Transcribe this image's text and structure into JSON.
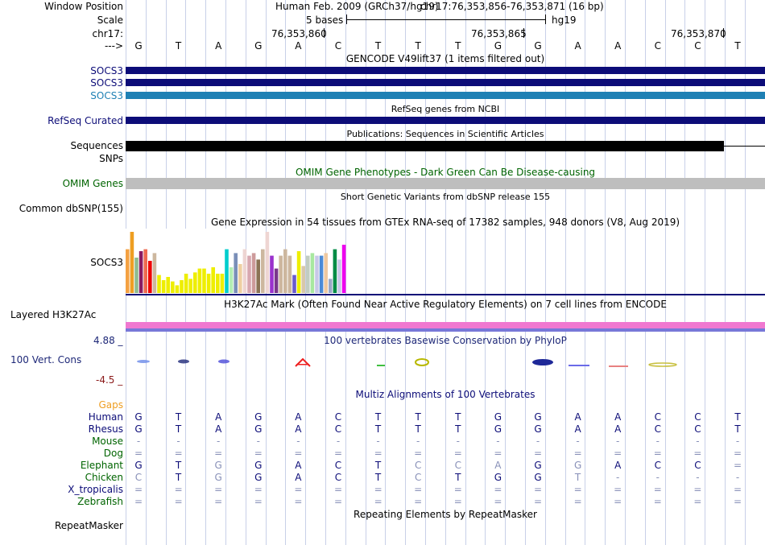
{
  "header": {
    "window_position_label": "Window Position",
    "scale_label": "Scale",
    "chrom_label": "chr17:",
    "arrow_label": "--->",
    "assembly": "Human Feb. 2009 (GRCh37/hg19)",
    "position": "chr17:76,353,856-76,353,871 (16 bp)",
    "scale_text": "5 bases",
    "scale_db": "hg19",
    "coord1": "76,353,860",
    "coord2": "76,353,865",
    "coord3": "76,353,870"
  },
  "sequence": [
    "G",
    "T",
    "A",
    "G",
    "A",
    "C",
    "T",
    "T",
    "T",
    "G",
    "G",
    "A",
    "A",
    "C",
    "C",
    "T"
  ],
  "gencode": {
    "title": "GENCODE V49lift37 (1 items filtered out)",
    "tracks": [
      "SOCS3",
      "SOCS3",
      "SOCS3"
    ],
    "colors": [
      "#0c0c78",
      "#0c0c78",
      "#1e80b4"
    ]
  },
  "refseq": {
    "title": "RefSeq genes from NCBI",
    "label": "RefSeq Curated"
  },
  "publications": {
    "title": "Publications: Sequences in Scientific Articles",
    "label1": "Sequences",
    "label2": "SNPs"
  },
  "omim": {
    "title": "OMIM Gene Phenotypes - Dark Green Can Be Disease-causing",
    "label": "OMIM Genes"
  },
  "dbsnp": {
    "title": "Short Genetic Variants from dbSNP release 155",
    "label": "Common dbSNP(155)"
  },
  "gtex": {
    "title": "Gene Expression in 54 tissues from GTEx RNA-seq of 17382 samples, 948 donors (V8, Aug 2019)",
    "label": "SOCS3",
    "bars": [
      {
        "v": 0.68,
        "c": "#f4a142"
      },
      {
        "v": 0.95,
        "c": "#ee9e22"
      },
      {
        "v": 0.55,
        "c": "#8fbc8f"
      },
      {
        "v": 0.65,
        "c": "#8b1c62"
      },
      {
        "v": 0.68,
        "c": "#ee6a50"
      },
      {
        "v": 0.5,
        "c": "#ee0000"
      },
      {
        "v": 0.62,
        "c": "#cdb79e"
      },
      {
        "v": 0.28,
        "c": "#eeee00"
      },
      {
        "v": 0.2,
        "c": "#eeee00"
      },
      {
        "v": 0.25,
        "c": "#eeee00"
      },
      {
        "v": 0.18,
        "c": "#eeee00"
      },
      {
        "v": 0.12,
        "c": "#eeee00"
      },
      {
        "v": 0.2,
        "c": "#eeee00"
      },
      {
        "v": 0.3,
        "c": "#eeee00"
      },
      {
        "v": 0.22,
        "c": "#eeee00"
      },
      {
        "v": 0.32,
        "c": "#eeee00"
      },
      {
        "v": 0.38,
        "c": "#eeee00"
      },
      {
        "v": 0.38,
        "c": "#eeee00"
      },
      {
        "v": 0.3,
        "c": "#eeee00"
      },
      {
        "v": 0.4,
        "c": "#eeee00"
      },
      {
        "v": 0.3,
        "c": "#eeee00"
      },
      {
        "v": 0.3,
        "c": "#eeee00"
      },
      {
        "v": 0.68,
        "c": "#00cdcd"
      },
      {
        "v": 0.4,
        "c": "#b4eeb4"
      },
      {
        "v": 0.62,
        "c": "#7a8fb8"
      },
      {
        "v": 0.45,
        "c": "#eecfa1"
      },
      {
        "v": 0.68,
        "c": "#eed5d2"
      },
      {
        "v": 0.58,
        "c": "#d8a8b0"
      },
      {
        "v": 0.62,
        "c": "#cd9b9b"
      },
      {
        "v": 0.52,
        "c": "#8b7355"
      },
      {
        "v": 0.68,
        "c": "#cdb79e"
      },
      {
        "v": 0.95,
        "c": "#eed5d2"
      },
      {
        "v": 0.58,
        "c": "#9a32cd"
      },
      {
        "v": 0.38,
        "c": "#7a378b"
      },
      {
        "v": 0.58,
        "c": "#cdb79e"
      },
      {
        "v": 0.68,
        "c": "#cdb79e"
      },
      {
        "v": 0.58,
        "c": "#cdb79e"
      },
      {
        "v": 0.28,
        "c": "#6a5acd"
      },
      {
        "v": 0.65,
        "c": "#eeee00"
      },
      {
        "v": 0.42,
        "c": "#d8c8a8"
      },
      {
        "v": 0.58,
        "c": "#c1cdc1"
      },
      {
        "v": 0.62,
        "c": "#a8e8a0"
      },
      {
        "v": 0.58,
        "c": "#c8c8e8"
      },
      {
        "v": 0.58,
        "c": "#4a8ad8"
      },
      {
        "v": 0.62,
        "c": "#eec8a0"
      },
      {
        "v": 0.22,
        "c": "#9aa8c8"
      },
      {
        "v": 0.68,
        "c": "#008b45"
      },
      {
        "v": 0.52,
        "c": "#c8c8e8"
      },
      {
        "v": 0.75,
        "c": "#ee00ee"
      }
    ]
  },
  "h3k27ac": {
    "title": "H3K27Ac Mark (Often Found Near Active Regulatory Elements) on 7 cell lines from ENCODE",
    "label": "Layered H3K27Ac"
  },
  "conservation": {
    "title": "100 vertebrates Basewise Conservation by PhyloP",
    "label": "100 Vert. Cons",
    "max": "4.88 _",
    "min": "-4.5 _"
  },
  "multiz": {
    "title": "Multiz Alignments of 100 Vertebrates",
    "gaps_label": "Gaps",
    "species": [
      {
        "name": "Human",
        "color": "#0c0c78",
        "bases": [
          "G",
          "T",
          "A",
          "G",
          "A",
          "C",
          "T",
          "T",
          "T",
          "G",
          "G",
          "A",
          "A",
          "C",
          "C",
          "T"
        ],
        "faded": []
      },
      {
        "name": "Rhesus",
        "color": "#0c0c78",
        "bases": [
          "G",
          "T",
          "A",
          "G",
          "A",
          "C",
          "T",
          "T",
          "T",
          "G",
          "G",
          "A",
          "A",
          "C",
          "C",
          "T"
        ],
        "faded": []
      },
      {
        "name": "Mouse",
        "color": "#006400",
        "bases": [
          "-",
          "-",
          "-",
          "-",
          "-",
          "-",
          "-",
          "-",
          "-",
          "-",
          "-",
          "-",
          "-",
          "-",
          "-",
          "-"
        ],
        "faded": []
      },
      {
        "name": "Dog",
        "color": "#006400",
        "bases": [
          "=",
          "=",
          "=",
          "=",
          "=",
          "=",
          "=",
          "=",
          "=",
          "=",
          "=",
          "=",
          "=",
          "=",
          "=",
          "="
        ],
        "faded": []
      },
      {
        "name": "Elephant",
        "color": "#006400",
        "bases": [
          "G",
          "T",
          "G",
          "G",
          "A",
          "C",
          "T",
          "C",
          "C",
          "A",
          "G",
          "G",
          "A",
          "C",
          "C",
          "="
        ],
        "faded": [
          2,
          7,
          8,
          9,
          11
        ]
      },
      {
        "name": "Chicken",
        "color": "#006400",
        "bases": [
          "C",
          "T",
          "G",
          "G",
          "A",
          "C",
          "T",
          "C",
          "T",
          "G",
          "G",
          "T",
          "-",
          "-",
          "-",
          "-"
        ],
        "faded": [
          0,
          2,
          7,
          11
        ]
      },
      {
        "name": "X_tropicalis",
        "color": "#0c0c78",
        "bases": [
          "=",
          "=",
          "=",
          "=",
          "=",
          "=",
          "=",
          "=",
          "=",
          "=",
          "=",
          "=",
          "=",
          "=",
          "=",
          "="
        ],
        "faded": []
      },
      {
        "name": "Zebrafish",
        "color": "#006400",
        "bases": [
          "=",
          "=",
          "=",
          "=",
          "=",
          "=",
          "=",
          "=",
          "=",
          "=",
          "=",
          "=",
          "=",
          "=",
          "=",
          "="
        ],
        "faded": []
      }
    ]
  },
  "repeatmasker": {
    "title": "Repeating Elements by RepeatMasker",
    "label": "RepeatMasker"
  }
}
